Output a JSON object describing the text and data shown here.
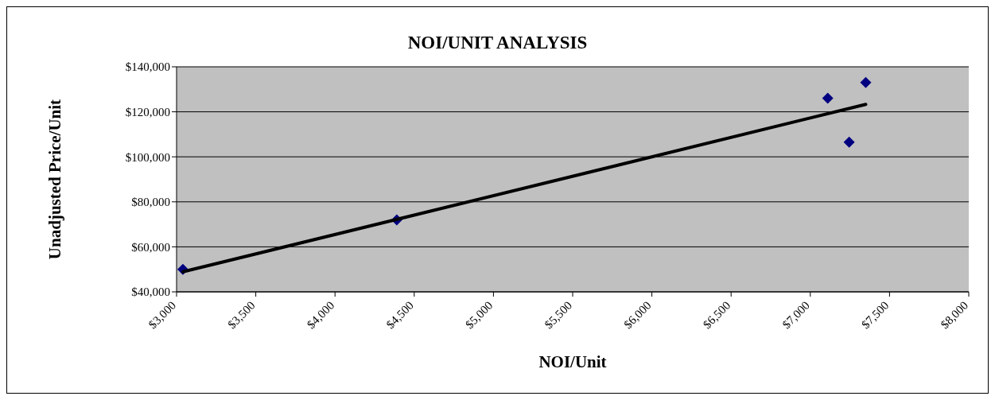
{
  "chart_data": {
    "type": "scatter",
    "title": "NOI/UNIT ANALYSIS",
    "xlabel": "NOI/Unit",
    "ylabel": "Unadjusted Price/Unit",
    "series": [
      {
        "color": "#000080",
        "marker": "diamond",
        "x": [
          3040,
          4390,
          7110,
          7245,
          7350
        ],
        "values": [
          50000,
          72000,
          126000,
          106500,
          133000
        ]
      },
      {
        "type": "line",
        "color": "#000000",
        "marker": "none",
        "x": [
          3040,
          7350
        ],
        "values": [
          48900,
          123300
        ]
      }
    ],
    "xlim": [
      3000,
      8000
    ],
    "xticks": [
      {
        "value": 3000,
        "label": "$3,000"
      },
      {
        "value": 3500,
        "label": "$3,500"
      },
      {
        "value": 4000,
        "label": "$4,000"
      },
      {
        "value": 4500,
        "label": "$4,500"
      },
      {
        "value": 5000,
        "label": "$5,000"
      },
      {
        "value": 5500,
        "label": "$5,500"
      },
      {
        "value": 6000,
        "label": "$6,000"
      },
      {
        "value": 6500,
        "label": "$6,500"
      },
      {
        "value": 7000,
        "label": "$7,000"
      },
      {
        "value": 7500,
        "label": "$7,500"
      },
      {
        "value": 8000,
        "label": "$8,000"
      }
    ],
    "ylim": [
      40000,
      140000
    ],
    "yticks": [
      {
        "value": 40000,
        "label": "$40,000"
      },
      {
        "value": 60000,
        "label": "$60,000"
      },
      {
        "value": 80000,
        "label": "$80,000"
      },
      {
        "value": 100000,
        "label": "$100,000"
      },
      {
        "value": 120000,
        "label": "$120,000"
      },
      {
        "value": 140000,
        "label": "$140,000"
      }
    ],
    "grid": "y"
  }
}
